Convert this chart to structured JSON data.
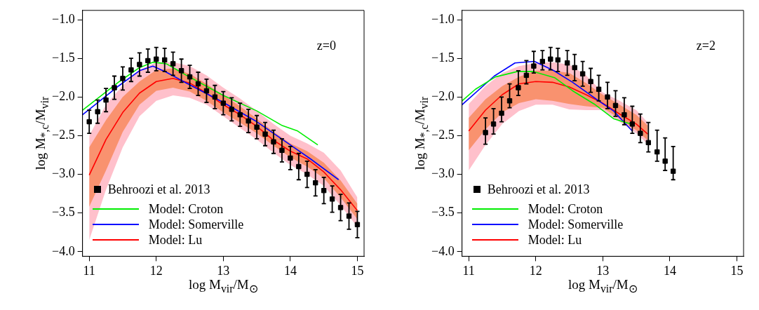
{
  "chart_data": [
    {
      "type": "line",
      "xlabel": "log M$_{vir}$/M$_{⊙}$",
      "ylabel": "log M$_{*,c}$/M$_{vir}$",
      "xlim": [
        10.9,
        15.1
      ],
      "xticks": [
        11,
        12,
        13,
        14,
        15
      ],
      "ylim": [
        -4.06,
        -0.88
      ],
      "yticks": [
        {
          "value": -1,
          "label": "−1.0"
        },
        {
          "value": -1.5,
          "label": "−1.5"
        },
        {
          "value": -2,
          "label": "−2.0"
        },
        {
          "value": -2.5,
          "label": "−2.5"
        },
        {
          "value": -3,
          "label": "−3.0"
        },
        {
          "value": -3.5,
          "label": "−3.5"
        },
        {
          "value": -4,
          "label": "−4.0"
        }
      ],
      "grid": false,
      "legend": "bottom left",
      "annotations": [
        "z=0"
      ],
      "series": [
        {
          "type": "line",
          "color": "#ffc0cb",
          "x": [
            11.0,
            11.25,
            11.5,
            11.75,
            12.0,
            12.25,
            12.5,
            12.75,
            13.0,
            13.25,
            13.5,
            13.75,
            14.0,
            14.25,
            14.5,
            14.75,
            15.0
          ],
          "values": [
            null,
            null,
            null,
            null,
            null,
            null,
            null,
            null,
            null,
            null,
            null,
            null,
            null,
            null,
            null,
            null,
            null
          ],
          "lower": [
            -3.85,
            -3.2,
            -2.65,
            -2.25,
            -2.05,
            -1.98,
            -2.01,
            -2.1,
            -2.25,
            -2.4,
            -2.55,
            -2.72,
            -2.88,
            -3.0,
            -3.15,
            -3.4,
            -3.68
          ],
          "upper": [
            -2.5,
            -2.1,
            -1.85,
            -1.65,
            -1.55,
            -1.55,
            -1.6,
            -1.72,
            -1.88,
            -2.02,
            -2.18,
            -2.35,
            -2.5,
            -2.6,
            -2.72,
            -2.95,
            -3.3
          ]
        },
        {
          "type": "line",
          "color": "#f9926f",
          "x": [
            11.0,
            11.25,
            11.5,
            11.75,
            12.0,
            12.25,
            12.5,
            12.75,
            13.0,
            13.25,
            13.5,
            13.75,
            14.0,
            14.25,
            14.5,
            14.75,
            15.0
          ],
          "values": [
            null,
            null,
            null,
            null,
            null,
            null,
            null,
            null,
            null,
            null,
            null,
            null,
            null,
            null,
            null,
            null,
            null
          ],
          "lower": [
            -3.42,
            -2.95,
            -2.45,
            -2.1,
            -1.92,
            -1.88,
            -1.93,
            -2.05,
            -2.2,
            -2.33,
            -2.47,
            -2.63,
            -2.78,
            -2.9,
            -3.05,
            -3.3,
            -3.58
          ],
          "upper": [
            -2.65,
            -2.3,
            -2.0,
            -1.8,
            -1.65,
            -1.63,
            -1.7,
            -1.83,
            -1.98,
            -2.12,
            -2.28,
            -2.45,
            -2.6,
            -2.7,
            -2.85,
            -3.08,
            -3.38
          ]
        },
        {
          "name": "Behroozi et al. 2013",
          "type": "scatter",
          "marker": "square",
          "color": "#000000",
          "x": [
            11.0,
            11.125,
            11.25,
            11.375,
            11.5,
            11.625,
            11.75,
            11.875,
            12.0,
            12.125,
            12.25,
            12.375,
            12.5,
            12.625,
            12.75,
            12.875,
            13.0,
            13.125,
            13.25,
            13.375,
            13.5,
            13.625,
            13.75,
            13.875,
            14.0,
            14.125,
            14.25,
            14.375,
            14.5,
            14.625,
            14.75,
            14.875,
            15.0
          ],
          "values": [
            -2.32,
            -2.19,
            -2.04,
            -1.88,
            -1.76,
            -1.65,
            -1.58,
            -1.53,
            -1.51,
            -1.52,
            -1.57,
            -1.66,
            -1.74,
            -1.83,
            -1.92,
            -2.0,
            -2.08,
            -2.16,
            -2.23,
            -2.31,
            -2.39,
            -2.48,
            -2.58,
            -2.69,
            -2.79,
            -2.9,
            -3.0,
            -3.11,
            -3.21,
            -3.32,
            -3.43,
            -3.54,
            -3.65
          ],
          "errors": [
            0.15,
            0.15,
            0.15,
            0.15,
            0.15,
            0.15,
            0.15,
            0.15,
            0.15,
            0.15,
            0.15,
            0.15,
            0.15,
            0.15,
            0.15,
            0.15,
            0.15,
            0.15,
            0.15,
            0.15,
            0.15,
            0.15,
            0.15,
            0.15,
            0.15,
            0.17,
            0.17,
            0.17,
            0.17,
            0.17,
            0.17,
            0.17,
            0.17
          ]
        },
        {
          "name": "Model: Croton",
          "type": "line",
          "marker": "none",
          "color": "#00ee00",
          "x": [
            10.9,
            11.45,
            11.75,
            11.95,
            12.15,
            12.45,
            13.0,
            13.5,
            13.88,
            14.11,
            14.41
          ],
          "values": [
            -2.17,
            -1.8,
            -1.62,
            -1.55,
            -1.57,
            -1.72,
            -1.98,
            -2.18,
            -2.37,
            -2.44,
            -2.62
          ]
        },
        {
          "name": "Model: Somerville",
          "type": "line",
          "marker": "none",
          "color": "#0000ff",
          "x": [
            10.9,
            11.45,
            11.75,
            11.95,
            12.15,
            12.45,
            13.0,
            13.5,
            14.0,
            14.3,
            14.72
          ],
          "values": [
            -2.23,
            -1.85,
            -1.66,
            -1.6,
            -1.68,
            -1.82,
            -2.07,
            -2.32,
            -2.62,
            -2.8,
            -3.07
          ]
        },
        {
          "name": "Model: Lu",
          "type": "line",
          "marker": "none",
          "color": "#ff0000",
          "x": [
            11.0,
            11.25,
            11.5,
            11.75,
            12.0,
            12.25,
            12.5,
            12.75,
            13.0,
            13.25,
            13.5,
            13.75,
            14.0,
            14.25,
            14.5,
            14.75,
            15.0
          ],
          "values": [
            -3.01,
            -2.55,
            -2.2,
            -1.95,
            -1.8,
            -1.76,
            -1.82,
            -1.95,
            -2.1,
            -2.23,
            -2.38,
            -2.56,
            -2.7,
            -2.8,
            -2.97,
            -3.2,
            -3.47
          ]
        }
      ]
    },
    {
      "type": "line",
      "xlabel": "log M$_{vir}$/M$_{⊙}$",
      "ylabel": "log M$_{*,c}$/M$_{vir}$",
      "xlim": [
        10.9,
        15.1
      ],
      "xticks": [
        11,
        12,
        13,
        14,
        15
      ],
      "ylim": [
        -4.06,
        -0.88
      ],
      "yticks": [
        {
          "value": -1,
          "label": "−1.0"
        },
        {
          "value": -1.5,
          "label": "−1.5"
        },
        {
          "value": -2,
          "label": "−2.0"
        },
        {
          "value": -2.5,
          "label": "−2.5"
        },
        {
          "value": -3,
          "label": "−3.0"
        },
        {
          "value": -3.5,
          "label": "−3.5"
        },
        {
          "value": -4,
          "label": "−4.0"
        }
      ],
      "grid": false,
      "legend": "bottom left",
      "annotations": [
        "z=2"
      ],
      "series": [
        {
          "type": "line",
          "color": "#ffc0cb",
          "x": [
            11.0,
            11.25,
            11.5,
            11.75,
            12.0,
            12.25,
            12.5,
            12.75,
            13.0,
            13.25,
            13.5,
            13.67
          ],
          "values": [
            null,
            null,
            null,
            null,
            null,
            null,
            null,
            null,
            null,
            null,
            null,
            null
          ],
          "lower": [
            -2.95,
            -2.62,
            -2.35,
            -2.18,
            -2.1,
            -2.1,
            -2.16,
            -2.17,
            -2.17,
            -2.32,
            -2.47,
            -2.61
          ],
          "upper": [
            -2.09,
            -1.86,
            -1.69,
            -1.6,
            -1.56,
            -1.55,
            -1.58,
            -1.72,
            -1.94,
            -2.05,
            -2.17,
            -2.33
          ]
        },
        {
          "type": "line",
          "color": "#f9926f",
          "x": [
            11.0,
            11.25,
            11.5,
            11.75,
            12.0,
            12.25,
            12.5,
            12.75,
            13.0,
            13.25,
            13.5,
            13.67
          ],
          "values": [
            null,
            null,
            null,
            null,
            null,
            null,
            null,
            null,
            null,
            null,
            null,
            null
          ],
          "lower": [
            -2.69,
            -2.42,
            -2.2,
            -2.08,
            -2.03,
            -2.05,
            -2.09,
            -2.12,
            -2.14,
            -2.28,
            -2.43,
            -2.56
          ],
          "upper": [
            -2.27,
            -2.03,
            -1.86,
            -1.74,
            -1.66,
            -1.66,
            -1.69,
            -1.82,
            -1.97,
            -2.1,
            -2.23,
            -2.37
          ]
        },
        {
          "name": "Behroozi et al. 2013",
          "type": "scatter",
          "marker": "square",
          "color": "#000000",
          "x": [
            11.25,
            11.37,
            11.49,
            11.61,
            11.74,
            11.86,
            11.97,
            12.1,
            12.22,
            12.33,
            12.47,
            12.58,
            12.7,
            12.82,
            12.94,
            13.07,
            13.19,
            13.32,
            13.44,
            13.56,
            13.68,
            13.81,
            13.93,
            14.05
          ],
          "values": [
            -2.46,
            -2.35,
            -2.21,
            -2.05,
            -1.88,
            -1.72,
            -1.6,
            -1.54,
            -1.51,
            -1.52,
            -1.56,
            -1.62,
            -1.7,
            -1.8,
            -1.9,
            -2.0,
            -2.11,
            -2.23,
            -2.35,
            -2.47,
            -2.59,
            -2.71,
            -2.83,
            -2.96
          ],
          "errors": [
            [
              -2.61,
              -2.27
            ],
            [
              -2.48,
              -2.15
            ],
            [
              -2.32,
              -2.0
            ],
            [
              -2.14,
              -1.83
            ],
            [
              -1.98,
              -1.66
            ],
            [
              -1.83,
              -1.53
            ],
            [
              -1.69,
              -1.41
            ],
            [
              -1.65,
              -1.4
            ],
            [
              -1.65,
              -1.36
            ],
            [
              -1.67,
              -1.37
            ],
            [
              -1.72,
              -1.4
            ],
            [
              -1.79,
              -1.45
            ],
            [
              -1.86,
              -1.54
            ],
            [
              -1.94,
              -1.63
            ],
            [
              -2.05,
              -1.72
            ],
            [
              -2.15,
              -1.81
            ],
            [
              -2.25,
              -1.92
            ],
            [
              -2.36,
              -2.01
            ],
            [
              -2.47,
              -2.12
            ],
            [
              -2.59,
              -2.22
            ],
            [
              -2.71,
              -2.33
            ],
            [
              -2.83,
              -2.43
            ],
            [
              -2.95,
              -2.53
            ],
            [
              -3.07,
              -2.64
            ]
          ]
        },
        {
          "name": "Model: Croton",
          "type": "line",
          "marker": "none",
          "color": "#00ee00",
          "x": [
            10.9,
            11.1,
            11.4,
            11.73,
            11.96,
            12.28,
            12.55,
            12.87,
            13.16,
            13.3,
            13.47
          ],
          "values": [
            -2.05,
            -1.9,
            -1.74,
            -1.67,
            -1.67,
            -1.75,
            -1.92,
            -2.09,
            -2.28,
            -2.32,
            -2.36
          ]
        },
        {
          "name": "Model: Somerville",
          "type": "line",
          "marker": "none",
          "color": "#0000ff",
          "x": [
            10.9,
            11.38,
            11.69,
            11.98,
            12.27,
            12.55,
            12.94,
            13.16,
            13.3,
            13.44
          ],
          "values": [
            -2.1,
            -1.73,
            -1.56,
            -1.54,
            -1.66,
            -1.81,
            -2.05,
            -2.18,
            -2.31,
            -2.44
          ]
        },
        {
          "name": "Model: Lu",
          "type": "line",
          "marker": "none",
          "color": "#ff0000",
          "x": [
            11.0,
            11.25,
            11.5,
            11.75,
            12.0,
            12.25,
            12.5,
            12.75,
            13.0,
            13.25,
            13.5,
            13.67
          ],
          "values": [
            -2.44,
            -2.17,
            -1.97,
            -1.83,
            -1.8,
            -1.81,
            -1.87,
            -1.97,
            -2.08,
            -2.22,
            -2.35,
            -2.48
          ]
        }
      ]
    }
  ]
}
